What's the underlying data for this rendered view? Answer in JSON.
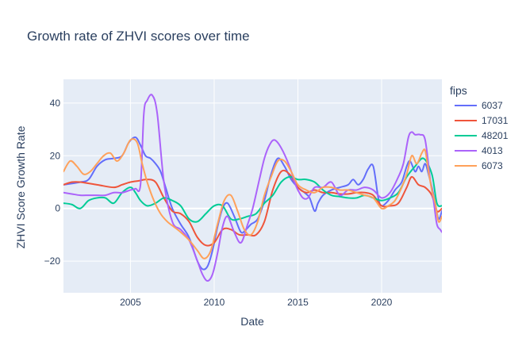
{
  "chart_data": {
    "type": "line",
    "title": "Growth rate of ZHVI scores over time",
    "xlabel": "Date",
    "ylabel": "ZHVI Score Growth Rate",
    "legend_title": "fips",
    "legend_position": "right",
    "grid": true,
    "xlim": [
      2001.0,
      2023.6
    ],
    "ylim": [
      -32,
      49
    ],
    "x_ticks": [
      2005,
      2010,
      2015,
      2020
    ],
    "x_tick_labels": [
      "2005",
      "2010",
      "2015",
      "2020"
    ],
    "y_ticks": [
      -20,
      0,
      20,
      40
    ],
    "y_tick_labels": [
      "−20",
      "0",
      "20",
      "40"
    ],
    "series": [
      {
        "name": "6037",
        "color": "#636efa",
        "x": [
          2001.0,
          2002.0,
          2002.5,
          2003.0,
          2003.5,
          2004.0,
          2004.5,
          2004.9,
          2005.3,
          2005.6,
          2005.9,
          2006.2,
          2006.5,
          2006.8,
          2007.1,
          2007.5,
          2008.0,
          2008.5,
          2009.0,
          2009.3,
          2009.6,
          2009.9,
          2010.2,
          2010.5,
          2010.8,
          2011.2,
          2011.6,
          2011.9,
          2012.2,
          2012.6,
          2013.0,
          2013.4,
          2013.8,
          2014.2,
          2014.6,
          2015.0,
          2015.4,
          2015.7,
          2016.0,
          2016.2,
          2016.5,
          2017.0,
          2017.5,
          2018.0,
          2018.3,
          2018.6,
          2018.9,
          2019.2,
          2019.5,
          2019.8,
          2020.0,
          2020.4,
          2020.8,
          2021.2,
          2021.5,
          2021.7,
          2022.0,
          2022.2,
          2022.4,
          2022.6,
          2022.8,
          2023.0,
          2023.2,
          2023.4,
          2023.6
        ],
        "y": [
          9,
          10,
          11,
          16,
          18.5,
          19,
          20,
          25,
          27,
          24,
          20,
          19,
          17,
          14,
          8,
          0,
          -6,
          -11,
          -20,
          -23,
          -22,
          -16,
          -7,
          0,
          2,
          -3,
          -9,
          -8,
          -6,
          -4,
          3,
          13,
          19,
          16,
          11,
          8,
          6,
          4,
          -1,
          2,
          5,
          7,
          8,
          9,
          11,
          9,
          11,
          15,
          16,
          4,
          1,
          3,
          7,
          10,
          16,
          18,
          14,
          16,
          14,
          17,
          13,
          8,
          2,
          -4,
          -1
        ]
      },
      {
        "name": "17031",
        "color": "#ef553b",
        "x": [
          2001.0,
          2001.5,
          2002.0,
          2003.0,
          2004.0,
          2004.5,
          2005.0,
          2005.5,
          2006.0,
          2006.5,
          2007.0,
          2007.5,
          2008.0,
          2008.5,
          2009.0,
          2009.5,
          2010.0,
          2010.5,
          2011.0,
          2011.5,
          2012.0,
          2012.5,
          2013.0,
          2013.5,
          2014.0,
          2014.5,
          2015.0,
          2015.5,
          2016.0,
          2016.5,
          2017.0,
          2017.5,
          2018.0,
          2018.5,
          2019.0,
          2019.5,
          2020.0,
          2020.5,
          2021.0,
          2021.5,
          2021.8,
          2022.2,
          2022.6,
          2023.0,
          2023.3,
          2023.6
        ],
        "y": [
          9,
          10,
          10,
          9,
          8,
          9,
          10,
          10.5,
          11,
          10,
          4,
          -1,
          -2,
          -5,
          -11,
          -14,
          -13,
          -8,
          -8,
          -10,
          -10,
          -10,
          -5,
          7,
          14,
          13,
          8,
          6,
          7,
          6,
          6,
          5.5,
          5.5,
          6,
          6,
          5,
          1,
          1,
          2,
          8,
          12,
          9,
          8,
          5,
          -1,
          0
        ]
      },
      {
        "name": "48201",
        "color": "#00cc96",
        "x": [
          2001.0,
          2001.5,
          2002.0,
          2002.5,
          2003.0,
          2003.5,
          2004.0,
          2004.5,
          2005.0,
          2005.3,
          2005.6,
          2006.0,
          2006.5,
          2007.0,
          2007.5,
          2008.0,
          2008.5,
          2009.0,
          2009.5,
          2010.0,
          2010.5,
          2011.0,
          2011.5,
          2012.0,
          2012.5,
          2013.0,
          2013.5,
          2014.0,
          2014.5,
          2015.0,
          2015.5,
          2016.0,
          2016.5,
          2017.0,
          2017.5,
          2018.0,
          2018.5,
          2019.0,
          2019.5,
          2020.0,
          2020.5,
          2021.0,
          2021.5,
          2022.0,
          2022.5,
          2023.0,
          2023.3,
          2023.6
        ],
        "y": [
          2,
          1.5,
          0,
          3,
          4,
          4,
          2,
          6,
          8,
          6,
          3,
          1,
          2,
          4,
          3,
          1,
          -4,
          -5,
          -2,
          1,
          1,
          -4,
          -4,
          -3,
          -2,
          2,
          5,
          10,
          12,
          11,
          11,
          10,
          7,
          5,
          4.5,
          4,
          4,
          5,
          4,
          3,
          4,
          6,
          12,
          16,
          19,
          13,
          2,
          1
        ]
      },
      {
        "name": "4013",
        "color": "#ab63fa",
        "x": [
          2001.0,
          2001.5,
          2002.0,
          2002.5,
          2003.0,
          2003.5,
          2004.0,
          2004.5,
          2005.0,
          2005.3,
          2005.6,
          2005.8,
          2006.0,
          2006.3,
          2006.6,
          2007.0,
          2007.5,
          2008.0,
          2008.5,
          2009.0,
          2009.3,
          2009.6,
          2009.9,
          2010.2,
          2010.5,
          2010.8,
          2011.2,
          2011.6,
          2012.0,
          2012.3,
          2012.7,
          2013.0,
          2013.3,
          2013.6,
          2014.0,
          2014.5,
          2014.8,
          2015.0,
          2015.3,
          2015.6,
          2016.0,
          2016.5,
          2017.0,
          2017.5,
          2018.0,
          2018.5,
          2019.0,
          2019.5,
          2020.0,
          2020.5,
          2021.0,
          2021.3,
          2021.6,
          2021.8,
          2022.0,
          2022.3,
          2022.6,
          2022.9,
          2023.1,
          2023.3,
          2023.5,
          2023.6
        ],
        "y": [
          6,
          5.5,
          5,
          5,
          5,
          5,
          6,
          6,
          7,
          7.5,
          9,
          36,
          41,
          43,
          36,
          10,
          -5,
          -8,
          -12,
          -20,
          -25,
          -27.5,
          -25,
          -17,
          -7,
          -3,
          -9,
          -13,
          -6,
          0,
          11,
          19,
          24,
          26,
          23,
          16,
          10,
          7,
          4,
          4,
          8,
          8,
          10,
          5,
          7,
          7,
          8,
          7,
          4,
          6,
          12,
          17,
          27,
          29,
          28,
          28,
          26,
          11,
          3,
          -6,
          -8,
          -9
        ]
      },
      {
        "name": "6073",
        "color": "#ffa15a",
        "x": [
          2001.0,
          2001.4,
          2001.8,
          2002.2,
          2002.6,
          2003.0,
          2003.4,
          2003.8,
          2004.2,
          2004.6,
          2005.0,
          2005.4,
          2005.7,
          2006.0,
          2006.4,
          2006.8,
          2007.2,
          2007.6,
          2008.0,
          2008.5,
          2009.0,
          2009.4,
          2009.8,
          2010.2,
          2010.6,
          2011.0,
          2011.4,
          2011.8,
          2012.2,
          2012.6,
          2013.0,
          2013.4,
          2013.8,
          2014.2,
          2014.6,
          2015.0,
          2015.5,
          2016.0,
          2016.5,
          2017.0,
          2017.5,
          2018.0,
          2018.5,
          2019.0,
          2019.5,
          2020.0,
          2020.4,
          2020.8,
          2021.2,
          2021.5,
          2021.8,
          2022.1,
          2022.4,
          2022.6,
          2022.8,
          2023.0,
          2023.2,
          2023.4,
          2023.6
        ],
        "y": [
          14,
          18,
          16,
          13,
          14,
          17,
          20,
          21,
          18,
          21,
          26,
          25,
          17,
          10,
          3,
          -2,
          -5,
          -7,
          -9,
          -12,
          -16,
          -19,
          -16,
          -6,
          3,
          5,
          -1,
          -8,
          -10,
          -5,
          5,
          12,
          18,
          18,
          14,
          9,
          7,
          6,
          8,
          8,
          7,
          7,
          6,
          5,
          4,
          0,
          1,
          3,
          8,
          13,
          20,
          17,
          21,
          22,
          14,
          7,
          2,
          -5,
          -3
        ]
      }
    ]
  }
}
